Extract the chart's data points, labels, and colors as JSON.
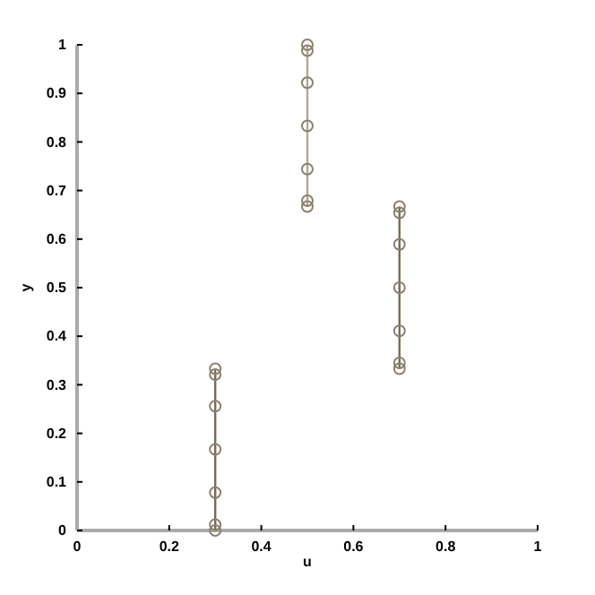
{
  "chart_data": {
    "type": "line",
    "xlabel": "u",
    "ylabel": "y",
    "xlim": [
      0,
      1
    ],
    "ylim": [
      0,
      1
    ],
    "xticks": [
      0,
      0.2,
      0.4,
      0.6,
      0.8,
      1
    ],
    "yticks": [
      0,
      0.1,
      0.2,
      0.3,
      0.4,
      0.5,
      0.6,
      0.7,
      0.8,
      0.9,
      1
    ],
    "marker": "circle",
    "grid": false,
    "series": [
      {
        "color": "#7b6a58",
        "x": [
          0.3,
          0.3,
          0.3,
          0.3,
          0.3,
          0.3,
          0.3
        ],
        "values": [
          0,
          0.012,
          0.078,
          0.167,
          0.256,
          0.321,
          0.333
        ]
      },
      {
        "color": "#b3a78f",
        "x": [
          0.5,
          0.5,
          0.5,
          0.5,
          0.5,
          0.5,
          0.5
        ],
        "values": [
          0.667,
          0.679,
          0.744,
          0.833,
          0.922,
          0.988,
          1
        ]
      },
      {
        "color": "#7b6a58",
        "x": [
          0.7,
          0.7,
          0.7,
          0.7,
          0.7,
          0.7,
          0.7
        ],
        "values": [
          0.333,
          0.345,
          0.411,
          0.5,
          0.589,
          0.654,
          0.667
        ]
      }
    ]
  }
}
